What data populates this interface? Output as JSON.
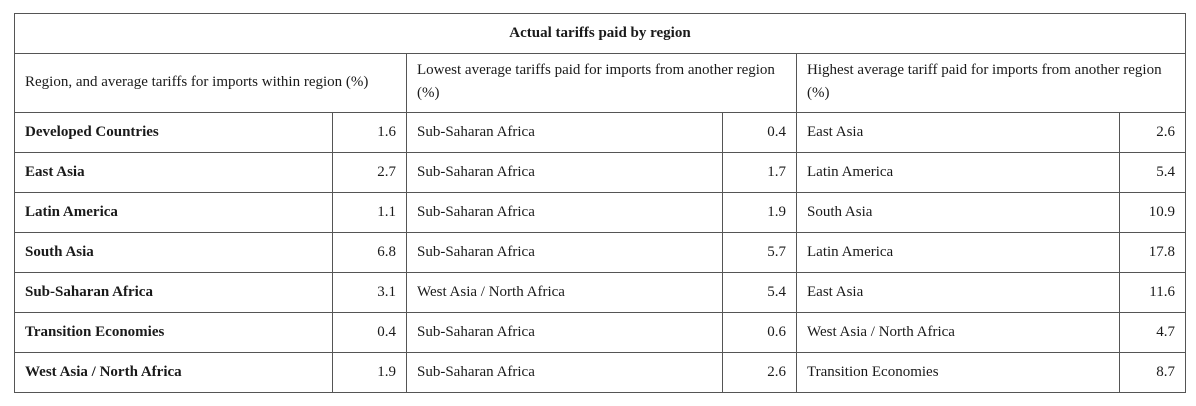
{
  "title": "Actual tariffs paid by region",
  "headers": {
    "col1": "Region, and average tariffs for imports within region (%)",
    "col2": "Lowest average tariffs paid for imports from another region (%)",
    "col3": "Highest average tariff paid for imports from another region (%)"
  },
  "rows": [
    {
      "region": "Developed Countries",
      "within": "1.6",
      "lowest_region": "Sub-Saharan Africa",
      "lowest_value": "0.4",
      "highest_region": "East Asia",
      "highest_value": "2.6"
    },
    {
      "region": "East Asia",
      "within": "2.7",
      "lowest_region": "Sub-Saharan Africa",
      "lowest_value": "1.7",
      "highest_region": "Latin America",
      "highest_value": "5.4"
    },
    {
      "region": "Latin America",
      "within": "1.1",
      "lowest_region": "Sub-Saharan Africa",
      "lowest_value": "1.9",
      "highest_region": "South Asia",
      "highest_value": "10.9"
    },
    {
      "region": "South Asia",
      "within": "6.8",
      "lowest_region": "Sub-Saharan Africa",
      "lowest_value": "5.7",
      "highest_region": "Latin America",
      "highest_value": "17.8"
    },
    {
      "region": "Sub-Saharan Africa",
      "within": "3.1",
      "lowest_region": "West Asia / North Africa",
      "lowest_value": "5.4",
      "highest_region": "East Asia",
      "highest_value": "11.6"
    },
    {
      "region": "Transition Economies",
      "within": "0.4",
      "lowest_region": "Sub-Saharan Africa",
      "lowest_value": "0.6",
      "highest_region": "West Asia / North Africa",
      "highest_value": "4.7"
    },
    {
      "region": "West Asia / North Africa",
      "within": "1.9",
      "lowest_region": "Sub-Saharan Africa",
      "lowest_value": "2.6",
      "highest_region": "Transition Economies",
      "highest_value": "8.7"
    }
  ]
}
